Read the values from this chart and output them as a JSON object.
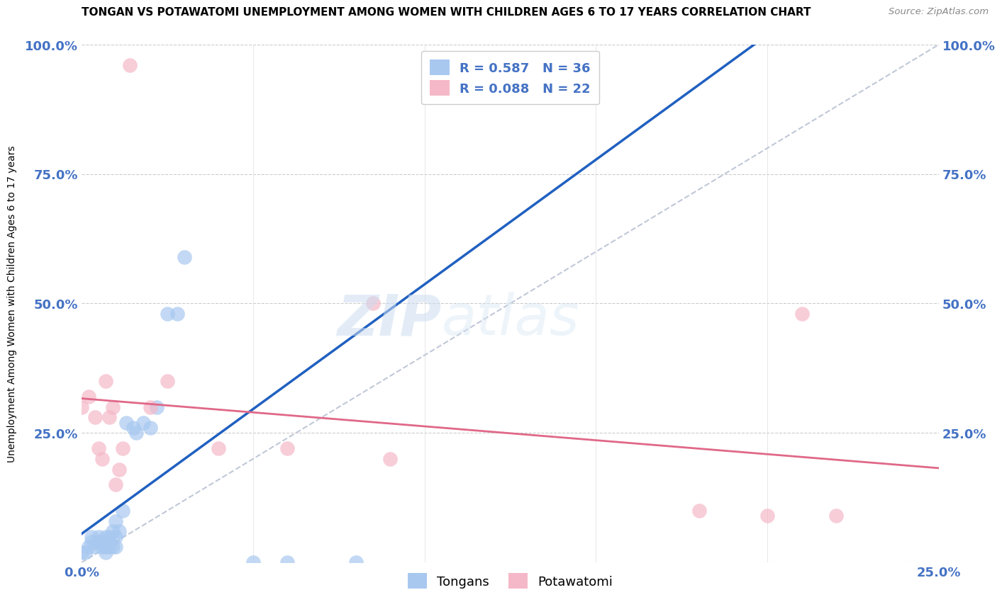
{
  "title": "TONGAN VS POTAWATOMI UNEMPLOYMENT AMONG WOMEN WITH CHILDREN AGES 6 TO 17 YEARS CORRELATION CHART",
  "source": "Source: ZipAtlas.com",
  "ylabel_label": "Unemployment Among Women with Children Ages 6 to 17 years",
  "x_min": 0.0,
  "x_max": 0.25,
  "y_min": 0.0,
  "y_max": 1.0,
  "tongan_R": 0.587,
  "tongan_N": 36,
  "potawatomi_R": 0.088,
  "potawatomi_N": 22,
  "tongan_color": "#a8c8f0",
  "potawatomi_color": "#f5b8c8",
  "tongan_line_color": "#2060c0",
  "potawatomi_line_color": "#e06888",
  "diagonal_color": "#c0c8d8",
  "background_color": "#ffffff",
  "watermark_zip": "ZIP",
  "watermark_atlas": "atlas",
  "tongan_x": [
    0.0,
    0.001,
    0.002,
    0.003,
    0.003,
    0.004,
    0.005,
    0.005,
    0.006,
    0.006,
    0.007,
    0.007,
    0.007,
    0.008,
    0.008,
    0.008,
    0.009,
    0.009,
    0.01,
    0.01,
    0.01,
    0.011,
    0.012,
    0.013,
    0.015,
    0.016,
    0.018,
    0.02,
    0.022,
    0.025,
    0.028,
    0.03,
    0.05,
    0.06,
    0.08,
    0.11
  ],
  "tongan_y": [
    0.02,
    0.02,
    0.03,
    0.04,
    0.05,
    0.03,
    0.04,
    0.05,
    0.03,
    0.04,
    0.02,
    0.03,
    0.05,
    0.03,
    0.04,
    0.05,
    0.03,
    0.06,
    0.03,
    0.05,
    0.08,
    0.06,
    0.1,
    0.27,
    0.26,
    0.25,
    0.27,
    0.26,
    0.3,
    0.48,
    0.48,
    0.59,
    0.0,
    0.0,
    0.0,
    0.92
  ],
  "potawatomi_x": [
    0.0,
    0.002,
    0.004,
    0.005,
    0.006,
    0.007,
    0.008,
    0.009,
    0.01,
    0.011,
    0.012,
    0.014,
    0.02,
    0.025,
    0.04,
    0.06,
    0.085,
    0.09,
    0.18,
    0.2,
    0.21,
    0.22
  ],
  "potawatomi_y": [
    0.3,
    0.32,
    0.28,
    0.22,
    0.2,
    0.35,
    0.28,
    0.3,
    0.15,
    0.18,
    0.22,
    0.96,
    0.3,
    0.35,
    0.22,
    0.22,
    0.5,
    0.2,
    0.1,
    0.09,
    0.48,
    0.09
  ]
}
